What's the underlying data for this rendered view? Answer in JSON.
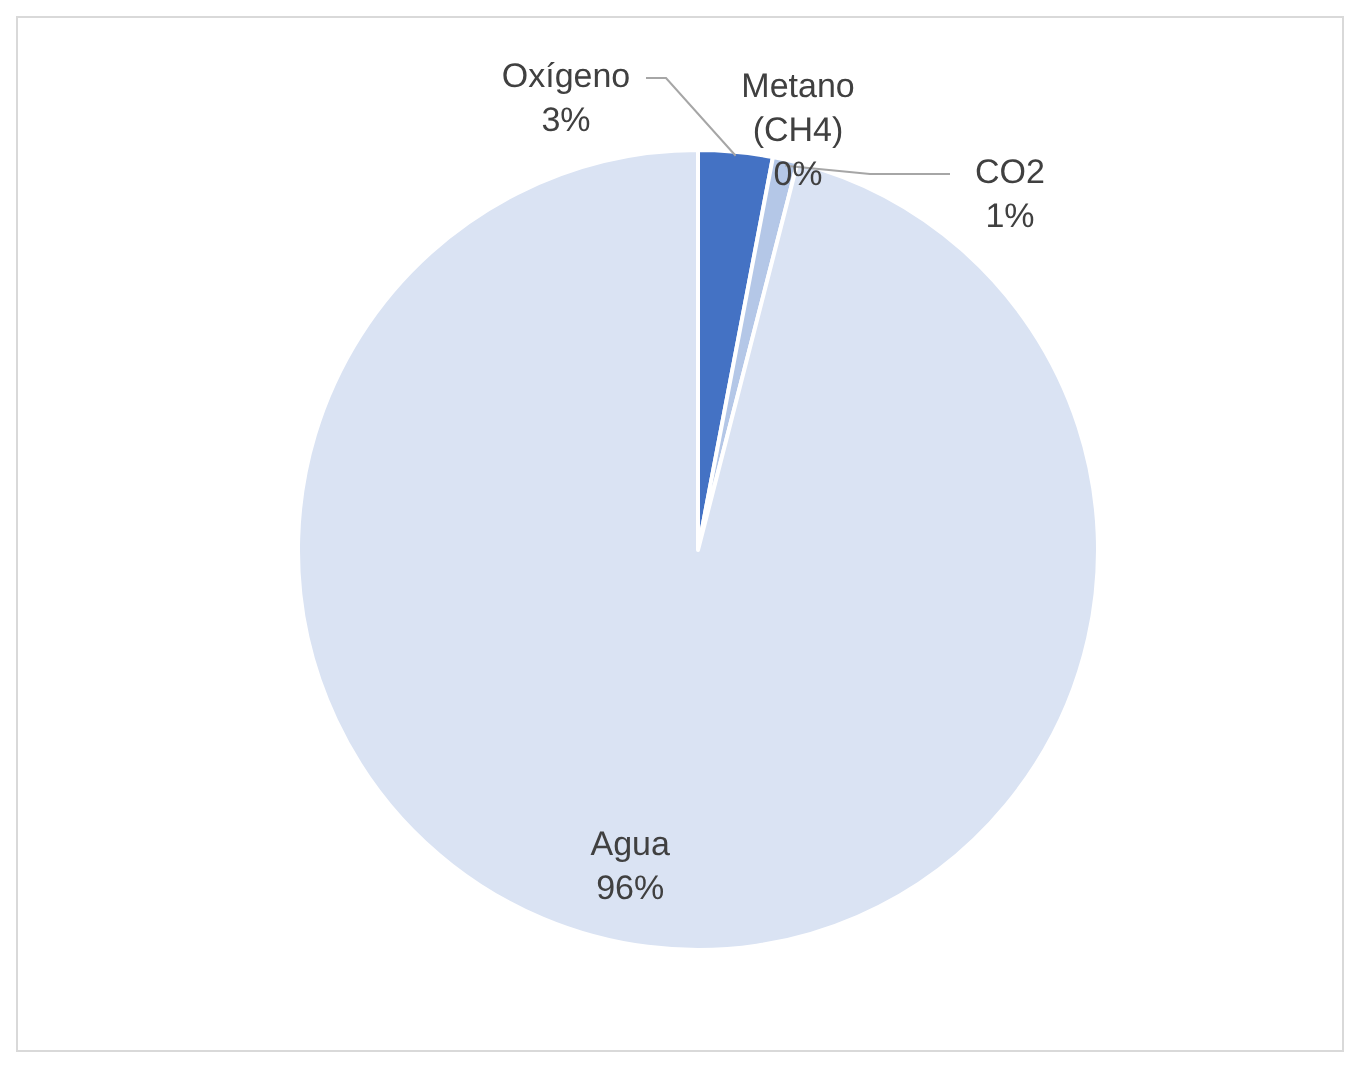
{
  "chart_data": {
    "type": "pie",
    "categories": [
      "Oxígeno",
      "Metano (CH4)",
      "CO2",
      "Agua"
    ],
    "values": [
      3,
      0,
      1,
      96
    ],
    "colors": [
      "#4472c4",
      "#8faadc",
      "#b4c7e7",
      "#dae3f3"
    ],
    "value_labels": [
      "3%",
      "0%",
      "1%",
      "96%"
    ],
    "legend": false
  }
}
